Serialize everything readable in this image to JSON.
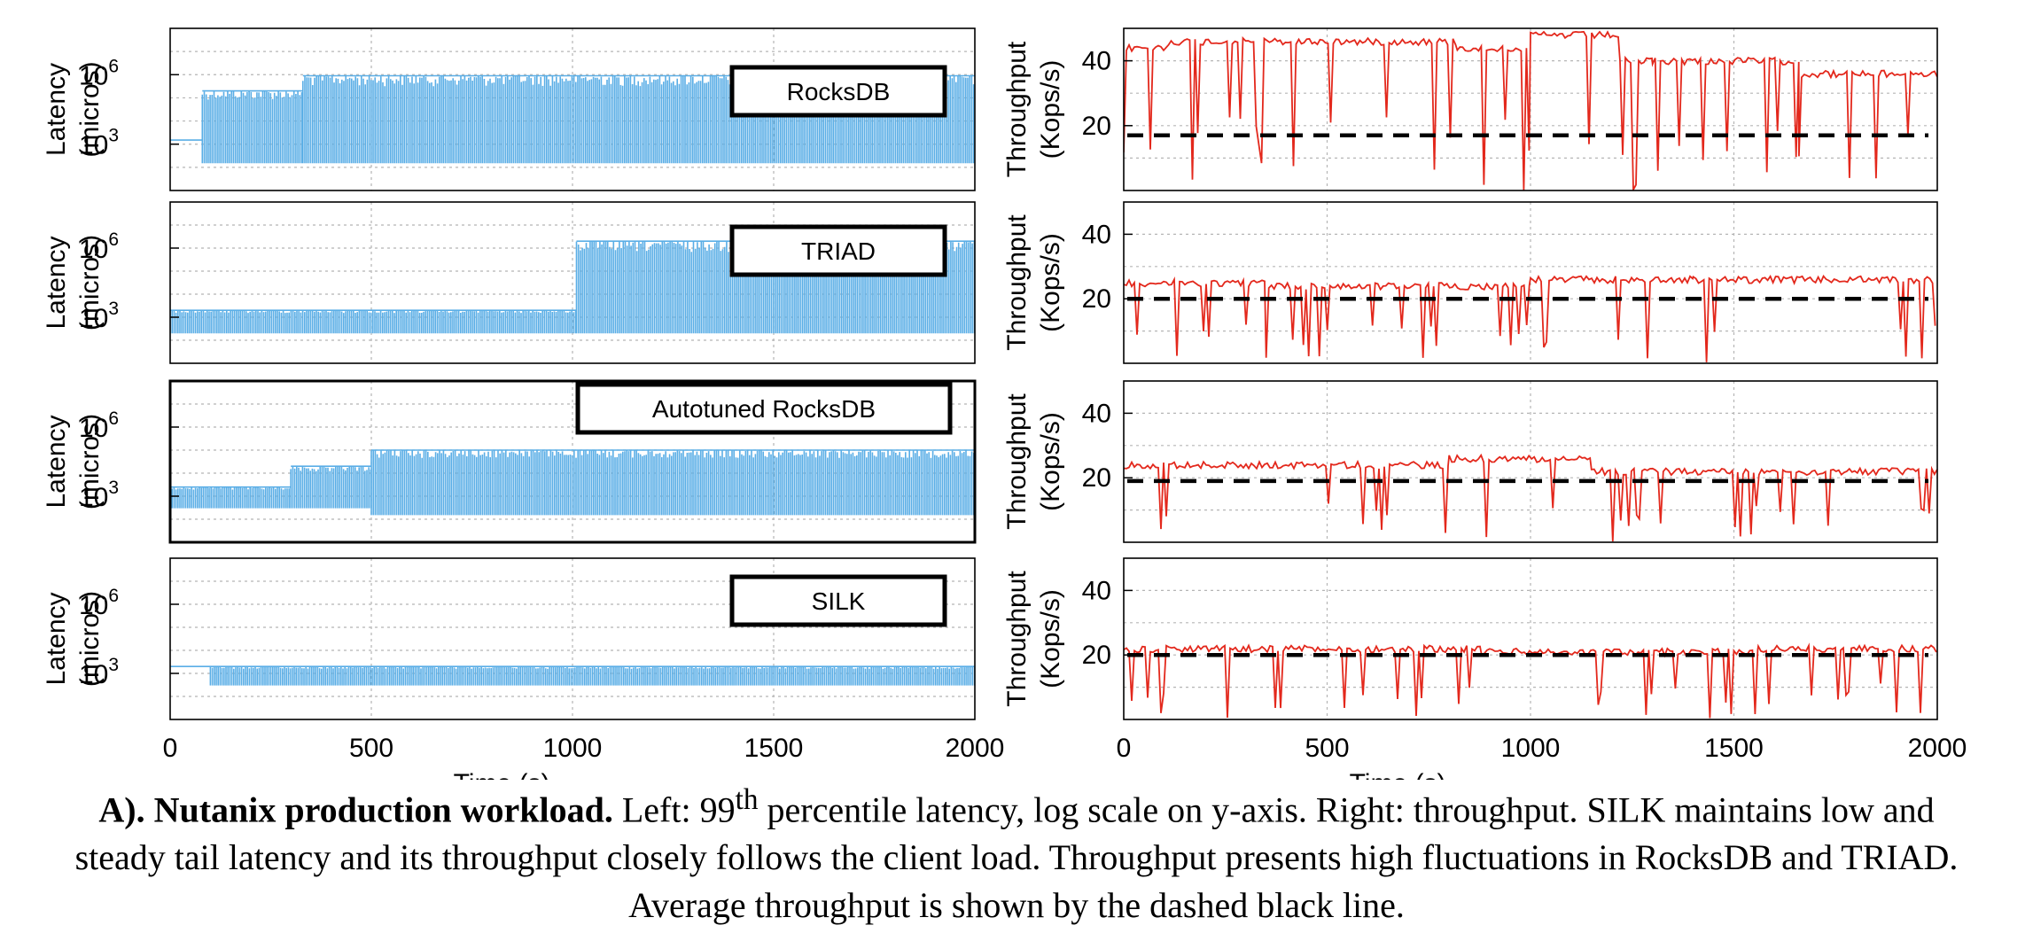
{
  "chart_data": {
    "type": "line",
    "layout": "4 rows x 2 columns small multiples",
    "latency_axis": {
      "ylabel": [
        "Latency",
        "(micros)"
      ],
      "scale": "log",
      "ylim": [
        10,
        100000000
      ],
      "tick_values": [
        1000,
        1000000
      ],
      "tick_labels": [
        {
          "base": "10",
          "exp": "3"
        },
        {
          "base": "10",
          "exp": "6"
        }
      ]
    },
    "throughput_axis": {
      "ylabel": [
        "Throughput",
        "(Kops/s)"
      ],
      "ylim": [
        0,
        50
      ],
      "tick_values": [
        20,
        40
      ],
      "tick_labels": [
        "20",
        "40"
      ]
    },
    "x_axis": {
      "xlabel": "Time (s)",
      "xlim": [
        0,
        2000
      ],
      "tick_values": [
        0,
        500,
        1000,
        1500,
        2000
      ],
      "tick_labels": [
        "0",
        "500",
        "1000",
        "1500",
        "2000"
      ]
    },
    "colors": {
      "latency": "#5aaee6",
      "throughput": "#e3281c",
      "average": "#000000"
    },
    "grid": true,
    "panels": [
      {
        "system": "RocksDB",
        "latency_segments": [
          {
            "from": 0,
            "to": 80,
            "low": 1500,
            "high": 1500
          },
          {
            "from": 80,
            "to": 330,
            "low": 150,
            "high": 200000
          },
          {
            "from": 330,
            "to": 2000,
            "low": 150,
            "high": 900000
          }
        ],
        "throughput_avg": 17,
        "throughput_segments": [
          {
            "from": 0,
            "to": 110,
            "low": 0,
            "high": 45
          },
          {
            "from": 110,
            "to": 820,
            "low": 0,
            "high": 47
          },
          {
            "from": 820,
            "to": 1000,
            "low": 0,
            "high": 45
          },
          {
            "from": 1000,
            "to": 1220,
            "low": 0,
            "high": 49
          },
          {
            "from": 1220,
            "to": 1300,
            "low": 0,
            "high": 41
          },
          {
            "from": 1300,
            "to": 1660,
            "low": 0,
            "high": 41
          },
          {
            "from": 1660,
            "to": 2000,
            "low": 0,
            "high": 37
          }
        ]
      },
      {
        "system": "TRIAD",
        "latency_segments": [
          {
            "from": 0,
            "to": 1010,
            "low": 200,
            "high": 2000
          },
          {
            "from": 1010,
            "to": 2000,
            "low": 200,
            "high": 2000000
          }
        ],
        "throughput_avg": 20,
        "throughput_segments": [
          {
            "from": 0,
            "to": 350,
            "low": 0,
            "high": 26
          },
          {
            "from": 350,
            "to": 1000,
            "low": 0,
            "high": 25
          },
          {
            "from": 1000,
            "to": 1400,
            "low": 0,
            "high": 27
          },
          {
            "from": 1400,
            "to": 2000,
            "low": 0,
            "high": 27
          }
        ]
      },
      {
        "system": "Autotuned RocksDB",
        "latency_segments": [
          {
            "from": 0,
            "to": 300,
            "low": 300,
            "high": 2500
          },
          {
            "from": 300,
            "to": 500,
            "low": 300,
            "high": 20000
          },
          {
            "from": 500,
            "to": 2000,
            "low": 150,
            "high": 100000
          }
        ],
        "throughput_avg": 19,
        "throughput_segments": [
          {
            "from": 0,
            "to": 800,
            "low": 0,
            "high": 25
          },
          {
            "from": 800,
            "to": 1150,
            "low": 0,
            "high": 27
          },
          {
            "from": 1150,
            "to": 2000,
            "low": 0,
            "high": 23
          }
        ]
      },
      {
        "system": "SILK",
        "latency_segments": [
          {
            "from": 0,
            "to": 100,
            "low": 2000,
            "high": 2000
          },
          {
            "from": 100,
            "to": 2000,
            "low": 300,
            "high": 2000
          }
        ],
        "throughput_avg": 20,
        "throughput_segments": [
          {
            "from": 0,
            "to": 880,
            "low": 0,
            "high": 23
          },
          {
            "from": 880,
            "to": 1160,
            "low": 20,
            "high": 22
          },
          {
            "from": 1160,
            "to": 1560,
            "low": 0,
            "high": 22
          },
          {
            "from": 1560,
            "to": 2000,
            "low": 0,
            "high": 23
          }
        ]
      }
    ]
  },
  "caption": {
    "bold": "A). Nutanix production workload.",
    "lead": " Left: 99",
    "sup": "th",
    "rest": " percentile latency, log scale on y-axis. Right: throughput.  SILK maintains low and steady tail latency and its throughput closely follows the client load. Throughput presents high fluctuations in RocksDB and TRIAD. Average throughput is shown by the dashed black line."
  }
}
